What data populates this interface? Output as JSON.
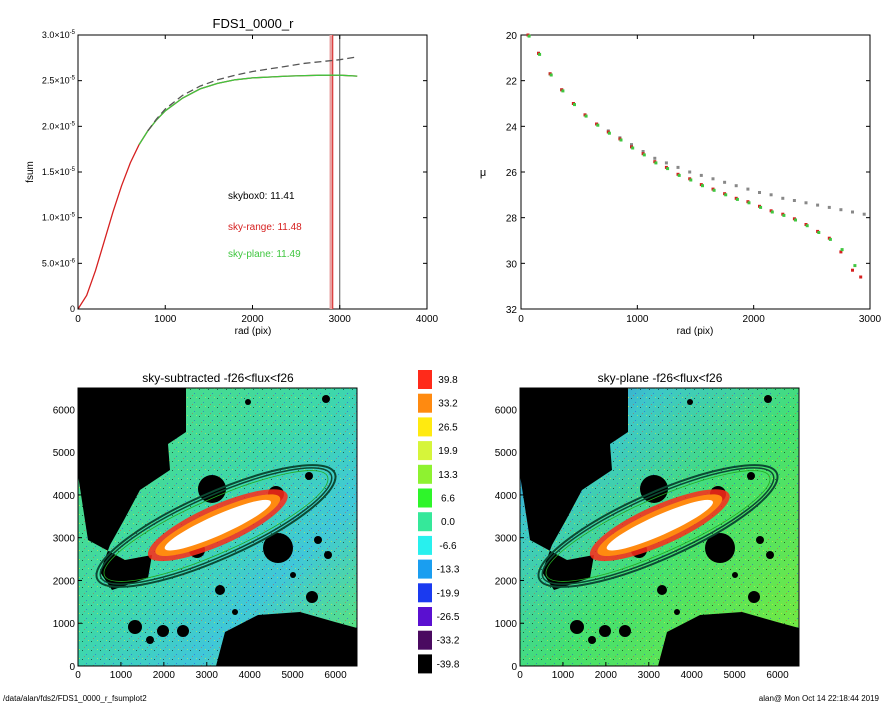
{
  "chart_data": [
    {
      "type": "line",
      "title": "FDS1_0000_r",
      "xlabel": "rad (pix)",
      "ylabel": "fsum",
      "xlim": [
        0,
        4000
      ],
      "ylim": [
        0,
        3e-05
      ],
      "x_ticks": [
        "0",
        "1000",
        "2000",
        "3000",
        "4000"
      ],
      "y_ticks": [
        {
          "mant": "0",
          "exp": ""
        },
        {
          "mant": "5.0×10",
          "exp": "-6"
        },
        {
          "mant": "1.0×10",
          "exp": "-5"
        },
        {
          "mant": "1.5×10",
          "exp": "-5"
        },
        {
          "mant": "2.0×10",
          "exp": "-5"
        },
        {
          "mant": "2.5×10",
          "exp": "-5"
        },
        {
          "mant": "3.0×10",
          "exp": "-5"
        }
      ],
      "series": [
        {
          "color": "#d62020",
          "dash": "",
          "x": [
            0,
            100,
            200,
            300,
            400,
            500,
            600,
            700,
            800,
            900,
            1000,
            1200,
            1400,
            1600,
            1800,
            2000,
            2200,
            2400,
            2600,
            2800,
            3000,
            3200
          ],
          "y": [
            0,
            1.5e-06,
            4.2e-06,
            7.4e-06,
            1.06e-05,
            1.35e-05,
            1.6e-05,
            1.8e-05,
            1.95e-05,
            2.07e-05,
            2.17e-05,
            2.31e-05,
            2.41e-05,
            2.47e-05,
            2.51e-05,
            2.53e-05,
            2.54e-05,
            2.55e-05,
            2.555e-05,
            2.56e-05,
            2.56e-05,
            2.55e-05
          ]
        },
        {
          "color": "#3fc63f",
          "dash": "",
          "x": [
            700,
            800,
            900,
            1000,
            1200,
            1400,
            1600,
            1800,
            2000,
            2200,
            2400,
            2600,
            2800,
            3000,
            3200
          ],
          "y": [
            1.8e-05,
            1.95e-05,
            2.07e-05,
            2.17e-05,
            2.31e-05,
            2.41e-05,
            2.47e-05,
            2.51e-05,
            2.53e-05,
            2.54e-05,
            2.55e-05,
            2.555e-05,
            2.56e-05,
            2.56e-05,
            2.55e-05
          ]
        },
        {
          "color": "#555555",
          "dash": "7,4",
          "x": [
            800,
            900,
            1000,
            1200,
            1400,
            1600,
            1800,
            2000,
            2200,
            2400,
            2600,
            2800,
            3000,
            3200
          ],
          "y": [
            1.95e-05,
            2.08e-05,
            2.19e-05,
            2.34e-05,
            2.44e-05,
            2.51e-05,
            2.56e-05,
            2.6e-05,
            2.63e-05,
            2.66e-05,
            2.69e-05,
            2.71e-05,
            2.73e-05,
            2.76e-05
          ]
        }
      ],
      "vlines": [
        {
          "x": 2900,
          "color": "#e8a0a0",
          "width": 3
        },
        {
          "x": 2920,
          "color": "#d62020",
          "width": 1
        },
        {
          "x": 3000,
          "color": "#555555",
          "width": 1
        }
      ],
      "annotations": [
        {
          "text": "skybox0: 11.41",
          "color": "#000000"
        },
        {
          "text": "sky-range: 11.48",
          "color": "#d62020"
        },
        {
          "text": "sky-plane: 11.49",
          "color": "#3fc63f"
        }
      ]
    },
    {
      "type": "scatter",
      "title": "",
      "xlabel": "rad (pix)",
      "ylabel": "μ",
      "xlim": [
        0,
        3000
      ],
      "ylim": [
        20,
        32
      ],
      "y_inverted": true,
      "x_ticks": [
        "0",
        "1000",
        "2000",
        "3000"
      ],
      "y_ticks": [
        "20",
        "22",
        "24",
        "26",
        "28",
        "30",
        "32"
      ],
      "series": [
        {
          "color": "#888888",
          "x": [
            60,
            150,
            250,
            350,
            450,
            550,
            650,
            750,
            850,
            950,
            1050,
            1150,
            1250,
            1350,
            1450,
            1550,
            1650,
            1750,
            1850,
            1950,
            2050,
            2150,
            2250,
            2350,
            2450,
            2550,
            2650,
            2750,
            2850,
            2950
          ],
          "y": [
            20.0,
            20.8,
            21.7,
            22.4,
            23.0,
            23.5,
            23.9,
            24.2,
            24.5,
            24.8,
            25.1,
            25.4,
            25.6,
            25.8,
            26.0,
            26.15,
            26.3,
            26.45,
            26.6,
            26.75,
            26.9,
            27.0,
            27.15,
            27.25,
            27.35,
            27.45,
            27.55,
            27.65,
            27.75,
            27.85
          ]
        },
        {
          "color": "#d62020",
          "x": [
            60,
            150,
            250,
            350,
            450,
            550,
            650,
            750,
            850,
            950,
            1050,
            1150,
            1250,
            1350,
            1450,
            1550,
            1650,
            1750,
            1850,
            1950,
            2050,
            2150,
            2250,
            2350,
            2450,
            2550,
            2650,
            2750,
            2850,
            2920
          ],
          "y": [
            20.0,
            20.8,
            21.7,
            22.4,
            23.0,
            23.5,
            23.9,
            24.25,
            24.55,
            24.9,
            25.2,
            25.55,
            25.8,
            26.1,
            26.3,
            26.55,
            26.75,
            26.95,
            27.15,
            27.3,
            27.5,
            27.7,
            27.85,
            28.05,
            28.3,
            28.6,
            28.9,
            29.5,
            30.3,
            30.6
          ]
        },
        {
          "color": "#3fc63f",
          "x": [
            70,
            160,
            260,
            360,
            460,
            560,
            660,
            760,
            860,
            960,
            1060,
            1160,
            1260,
            1360,
            1460,
            1560,
            1660,
            1760,
            1860,
            1960,
            2060,
            2160,
            2260,
            2360,
            2460,
            2560,
            2660,
            2760,
            2870
          ],
          "y": [
            20.05,
            20.85,
            21.75,
            22.45,
            23.05,
            23.55,
            23.95,
            24.3,
            24.6,
            24.95,
            25.25,
            25.6,
            25.85,
            26.15,
            26.35,
            26.6,
            26.8,
            27.0,
            27.2,
            27.35,
            27.55,
            27.75,
            27.9,
            28.1,
            28.35,
            28.65,
            28.95,
            29.4,
            30.1
          ]
        }
      ]
    }
  ],
  "image_panels": [
    {
      "title": "sky-subtracted -f26<flux<f26",
      "x_ticks": [
        "0",
        "1000",
        "2000",
        "3000",
        "4000",
        "5000",
        "6000"
      ],
      "y_ticks": [
        "0",
        "1000",
        "2000",
        "3000",
        "4000",
        "5000",
        "6000"
      ]
    },
    {
      "title": "sky-plane -f26<flux<f26",
      "x_ticks": [
        "0",
        "1000",
        "2000",
        "3000",
        "4000",
        "5000",
        "6000"
      ],
      "y_ticks": [
        "0",
        "1000",
        "2000",
        "3000",
        "4000",
        "5000",
        "6000"
      ]
    }
  ],
  "colorbar": {
    "levels": [
      {
        "label": "39.8",
        "color": "#ff2a1a"
      },
      {
        "label": "33.2",
        "color": "#ff8a10"
      },
      {
        "label": "26.5",
        "color": "#ffea10"
      },
      {
        "label": "19.9",
        "color": "#d6f53a"
      },
      {
        "label": "13.3",
        "color": "#8ef230"
      },
      {
        "label": "6.6",
        "color": "#2ef52a"
      },
      {
        "label": "0.0",
        "color": "#35e89a"
      },
      {
        "label": "-6.6",
        "color": "#28f0ee"
      },
      {
        "label": "-13.3",
        "color": "#1a9ef0"
      },
      {
        "label": "-19.9",
        "color": "#1a3af0"
      },
      {
        "label": "-26.5",
        "color": "#5a10d0"
      },
      {
        "label": "-33.2",
        "color": "#4a0a60"
      },
      {
        "label": "-39.8",
        "color": "#000000"
      }
    ]
  },
  "footer": {
    "path": "/data/alan/fds2/FDS1_0000_r_fsumplot2",
    "stamp": "alan@  Mon Oct 14 22:18:44 2019"
  }
}
